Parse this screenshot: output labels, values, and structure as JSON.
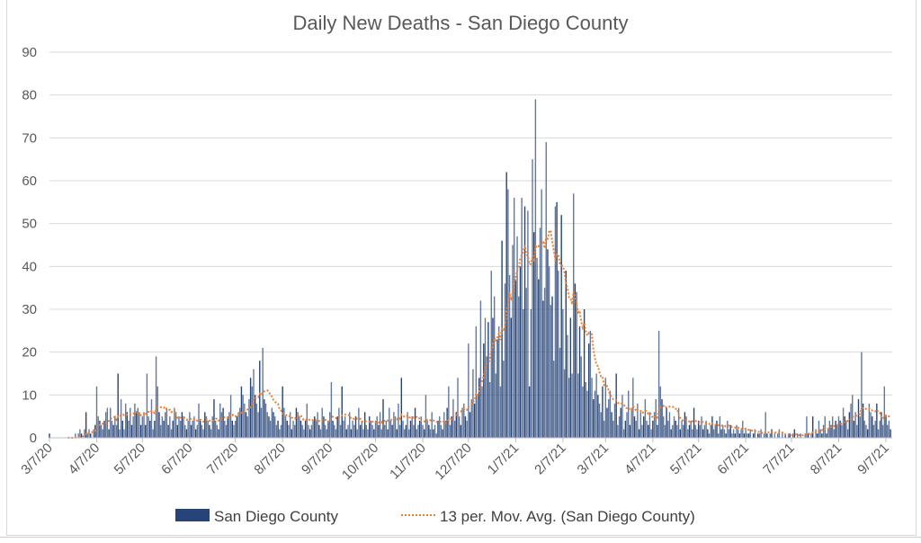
{
  "chart_data": {
    "type": "bar",
    "title": "Daily New Deaths - San Diego County",
    "start_date": "3/7/20",
    "ylim": [
      0,
      90
    ],
    "yticks": [
      0,
      10,
      20,
      30,
      40,
      50,
      60,
      70,
      80,
      90
    ],
    "xticks": [
      "3/7/20",
      "4/7/20",
      "5/7/20",
      "6/7/20",
      "7/7/20",
      "8/7/20",
      "9/7/20",
      "10/7/20",
      "11/7/20",
      "12/7/20",
      "1/7/21",
      "2/7/21",
      "3/7/21",
      "4/7/21",
      "5/7/21",
      "6/7/21",
      "7/7/21",
      "8/7/21",
      "9/7/21"
    ],
    "grid": true,
    "legend_position": "bottom",
    "colors": {
      "bars": "#264478",
      "trendline": "#ed7d31",
      "grid": "#d9d9d9",
      "text": "#595959"
    },
    "series": [
      {
        "name": "San Diego County",
        "kind": "bar",
        "values": [
          1,
          0,
          0,
          0,
          0,
          0,
          0,
          0,
          0,
          0,
          0,
          0,
          0,
          0,
          0,
          0,
          0,
          1,
          0,
          1,
          2,
          1,
          0,
          2,
          6,
          1,
          2,
          1,
          0,
          2,
          3,
          12,
          5,
          4,
          3,
          2,
          4,
          6,
          7,
          2,
          7,
          4,
          3,
          5,
          3,
          15,
          2,
          9,
          4,
          2,
          8,
          6,
          4,
          7,
          3,
          5,
          8,
          6,
          7,
          6,
          3,
          5,
          6,
          3,
          15,
          5,
          4,
          9,
          2,
          4,
          19,
          12,
          6,
          3,
          5,
          4,
          6,
          7,
          3,
          5,
          2,
          4,
          7,
          6,
          3,
          5,
          4,
          6,
          5,
          3,
          2,
          4,
          6,
          3,
          4,
          5,
          2,
          3,
          8,
          4,
          3,
          2,
          6,
          5,
          4,
          3,
          2,
          5,
          9,
          4,
          3,
          2,
          8,
          6,
          7,
          4,
          3,
          5,
          6,
          10,
          4,
          3,
          4,
          5,
          6,
          7,
          12,
          10,
          8,
          6,
          5,
          9,
          14,
          12,
          16,
          10,
          8,
          6,
          18,
          7,
          21,
          9,
          8,
          6,
          5,
          4,
          7,
          6,
          5,
          3,
          4,
          2,
          3,
          12,
          7,
          5,
          4,
          3,
          6,
          2,
          4,
          3,
          7,
          6,
          5,
          4,
          3,
          2,
          4,
          8,
          3,
          2,
          3,
          4,
          5,
          4,
          6,
          3,
          2,
          7,
          5,
          3,
          2,
          4,
          6,
          13,
          4,
          3,
          2,
          5,
          7,
          3,
          12,
          4,
          5,
          2,
          3,
          6,
          2,
          4,
          3,
          5,
          2,
          7,
          3,
          4,
          2,
          6,
          3,
          2,
          5,
          4,
          3,
          2,
          4,
          5,
          3,
          6,
          2,
          9,
          3,
          4,
          2,
          7,
          4,
          3,
          6,
          5,
          2,
          8,
          3,
          14,
          4,
          2,
          3,
          6,
          2,
          4,
          5,
          3,
          7,
          2,
          3,
          4,
          5,
          3,
          2,
          10,
          4,
          3,
          2,
          6,
          2,
          3,
          1,
          4,
          5,
          3,
          2,
          6,
          4,
          7,
          12,
          3,
          5,
          9,
          4,
          6,
          14,
          5,
          3,
          7,
          8,
          5,
          4,
          22,
          6,
          9,
          16,
          8,
          26,
          10,
          14,
          32,
          12,
          22,
          28,
          19,
          27,
          13,
          39,
          28,
          33,
          15,
          23,
          26,
          12,
          46,
          18,
          36,
          62,
          58,
          38,
          28,
          45,
          56,
          37,
          47,
          33,
          40,
          56,
          30,
          54,
          35,
          53,
          12,
          30,
          65,
          48,
          79,
          42,
          37,
          49,
          58,
          32,
          35,
          69,
          44,
          40,
          31,
          33,
          18,
          54,
          55,
          39,
          21,
          52,
          30,
          16,
          39,
          24,
          14,
          28,
          15,
          57,
          36,
          34,
          15,
          26,
          19,
          12,
          30,
          13,
          11,
          22,
          25,
          14,
          9,
          11,
          15,
          10,
          8,
          6,
          12,
          4,
          14,
          7,
          9,
          11,
          6,
          4,
          8,
          15,
          3,
          5,
          7,
          10,
          2,
          4,
          6,
          11,
          3,
          7,
          14,
          5,
          4,
          8,
          2,
          6,
          3,
          5,
          9,
          4,
          3,
          6,
          2,
          4,
          6,
          9,
          3,
          25,
          12,
          9,
          5,
          3,
          7,
          4,
          6,
          2,
          3,
          5,
          4,
          3,
          7,
          2,
          4,
          3,
          6,
          5,
          2,
          3,
          4,
          2,
          7,
          3,
          2,
          4,
          3,
          5,
          2,
          3,
          4,
          2,
          1,
          3,
          5,
          2,
          3,
          4,
          1,
          5,
          2,
          3,
          2,
          1,
          4,
          2,
          3,
          1,
          2,
          1,
          3,
          2,
          1,
          2,
          4,
          1,
          2,
          1,
          1,
          2,
          0,
          1,
          2,
          0,
          1,
          1,
          2,
          0,
          1,
          6,
          1,
          0,
          1,
          2,
          0,
          1,
          0,
          1,
          2,
          0,
          1,
          0,
          1,
          0,
          1,
          1,
          0,
          1,
          2,
          0,
          1,
          0,
          1,
          0,
          0,
          1,
          5,
          1,
          0,
          1,
          5,
          0,
          2,
          1,
          4,
          2,
          1,
          3,
          5,
          1,
          2,
          4,
          3,
          5,
          2,
          4,
          3,
          5,
          4,
          3,
          7,
          5,
          4,
          2,
          6,
          8,
          10,
          4,
          6,
          3,
          9,
          5,
          20,
          8,
          4,
          3,
          2,
          8,
          6,
          5,
          3,
          4,
          8,
          2,
          4,
          6,
          3,
          12,
          5,
          3,
          4,
          2
        ]
      },
      {
        "name": "13 per. Mov. Avg. (San Diego County)",
        "kind": "moving-average",
        "period": 13
      }
    ]
  }
}
